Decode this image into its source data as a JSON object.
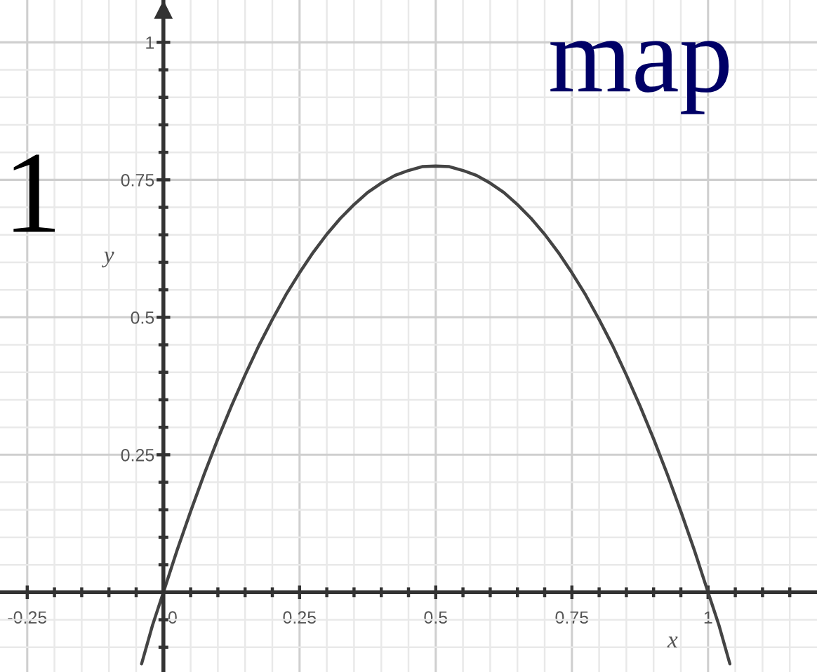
{
  "chart_data": {
    "type": "line",
    "title": "map",
    "xlabel": "x",
    "ylabel": "y",
    "annotations": [
      "1"
    ],
    "x": [
      -0.04,
      -0.02,
      0,
      0.025,
      0.05,
      0.075,
      0.1,
      0.125,
      0.15,
      0.175,
      0.2,
      0.225,
      0.25,
      0.275,
      0.3,
      0.325,
      0.35,
      0.375,
      0.4,
      0.425,
      0.45,
      0.475,
      0.5,
      0.525,
      0.55,
      0.575,
      0.6,
      0.625,
      0.65,
      0.675,
      0.7,
      0.725,
      0.75,
      0.775,
      0.8,
      0.825,
      0.85,
      0.875,
      0.9,
      0.925,
      0.95,
      0.975,
      1,
      1.02,
      1.04
    ],
    "values": [
      -0.13,
      -0.06,
      0,
      0.076,
      0.147,
      0.215,
      0.279,
      0.339,
      0.395,
      0.448,
      0.496,
      0.541,
      0.581,
      0.618,
      0.651,
      0.68,
      0.705,
      0.727,
      0.744,
      0.758,
      0.767,
      0.774,
      0.775,
      0.774,
      0.767,
      0.758,
      0.744,
      0.727,
      0.705,
      0.68,
      0.651,
      0.618,
      0.581,
      0.541,
      0.496,
      0.448,
      0.395,
      0.339,
      0.279,
      0.215,
      0.147,
      0.076,
      0,
      -0.06,
      -0.13
    ],
    "color": "#444444",
    "xlim": [
      -0.3,
      1.2
    ],
    "ylim": [
      -0.145,
      1.077
    ],
    "xticks": [
      -0.25,
      {
        "value": -0.2,
        "label": null
      },
      {
        "value": -0.15,
        "label": null
      },
      {
        "value": -0.1,
        "label": null
      },
      {
        "value": -0.05,
        "label": null
      },
      0,
      {
        "value": 0.05,
        "label": null
      },
      {
        "value": 0.1,
        "label": null
      },
      {
        "value": 0.15,
        "label": null
      },
      {
        "value": 0.2,
        "label": null
      },
      0.25,
      {
        "value": 0.3,
        "label": null
      },
      {
        "value": 0.35,
        "label": null
      },
      {
        "value": 0.4,
        "label": null
      },
      {
        "value": 0.45,
        "label": null
      },
      0.5,
      {
        "value": 0.55,
        "label": null
      },
      {
        "value": 0.6,
        "label": null
      },
      {
        "value": 0.65,
        "label": null
      },
      {
        "value": 0.7,
        "label": null
      },
      0.75,
      {
        "value": 0.8,
        "label": null
      },
      {
        "value": 0.85,
        "label": null
      },
      {
        "value": 0.9,
        "label": null
      },
      {
        "value": 0.95,
        "label": null
      },
      1,
      {
        "value": 1.05,
        "label": null
      },
      {
        "value": 1.1,
        "label": null
      },
      {
        "value": 1.15,
        "label": null
      }
    ],
    "yticks": [
      {
        "value": -0.1,
        "label": null
      },
      {
        "value": -0.05,
        "label": null
      },
      {
        "value": 0.05,
        "label": null
      },
      {
        "value": 0.1,
        "label": null
      },
      {
        "value": 0.15,
        "label": null
      },
      {
        "value": 0.2,
        "label": null
      },
      0.25,
      {
        "value": 0.3,
        "label": null
      },
      {
        "value": 0.35,
        "label": null
      },
      {
        "value": 0.4,
        "label": null
      },
      {
        "value": 0.45,
        "label": null
      },
      0.5,
      {
        "value": 0.55,
        "label": null
      },
      {
        "value": 0.6,
        "label": null
      },
      {
        "value": 0.65,
        "label": null
      },
      {
        "value": 0.7,
        "label": null
      },
      0.75,
      {
        "value": 0.8,
        "label": null
      },
      {
        "value": 0.85,
        "label": null
      },
      {
        "value": 0.9,
        "label": null
      },
      {
        "value": 0.95,
        "label": null
      },
      1
    ],
    "grid": true
  }
}
